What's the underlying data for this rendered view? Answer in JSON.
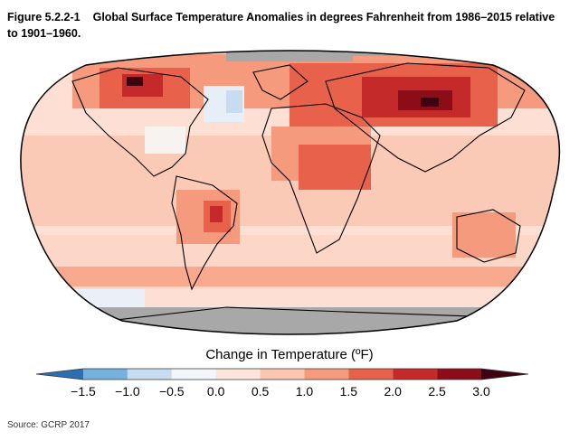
{
  "figure": {
    "number": "Figure 5.2.2-1",
    "title": "Global Surface Temperature Anomalies in degrees Fahrenheit from 1986–2015 relative to 1901–1960."
  },
  "legend": {
    "title": "Change in Temperature (ºF)",
    "ticks": [
      "−1.5",
      "−1.0",
      "−0.5",
      "0.0",
      "0.5",
      "1.0",
      "1.5",
      "2.0",
      "2.5",
      "3.0"
    ],
    "colors": [
      "#2c6fb3",
      "#76b0dc",
      "#c9dcef",
      "#f2f5f9",
      "#fde5dc",
      "#fbc6b0",
      "#f59a7c",
      "#e8614a",
      "#c42a2a",
      "#8c0d18",
      "#3d0410"
    ],
    "no_data_color": "#a8a8a8"
  },
  "source": "Source: GCRP 2017"
}
